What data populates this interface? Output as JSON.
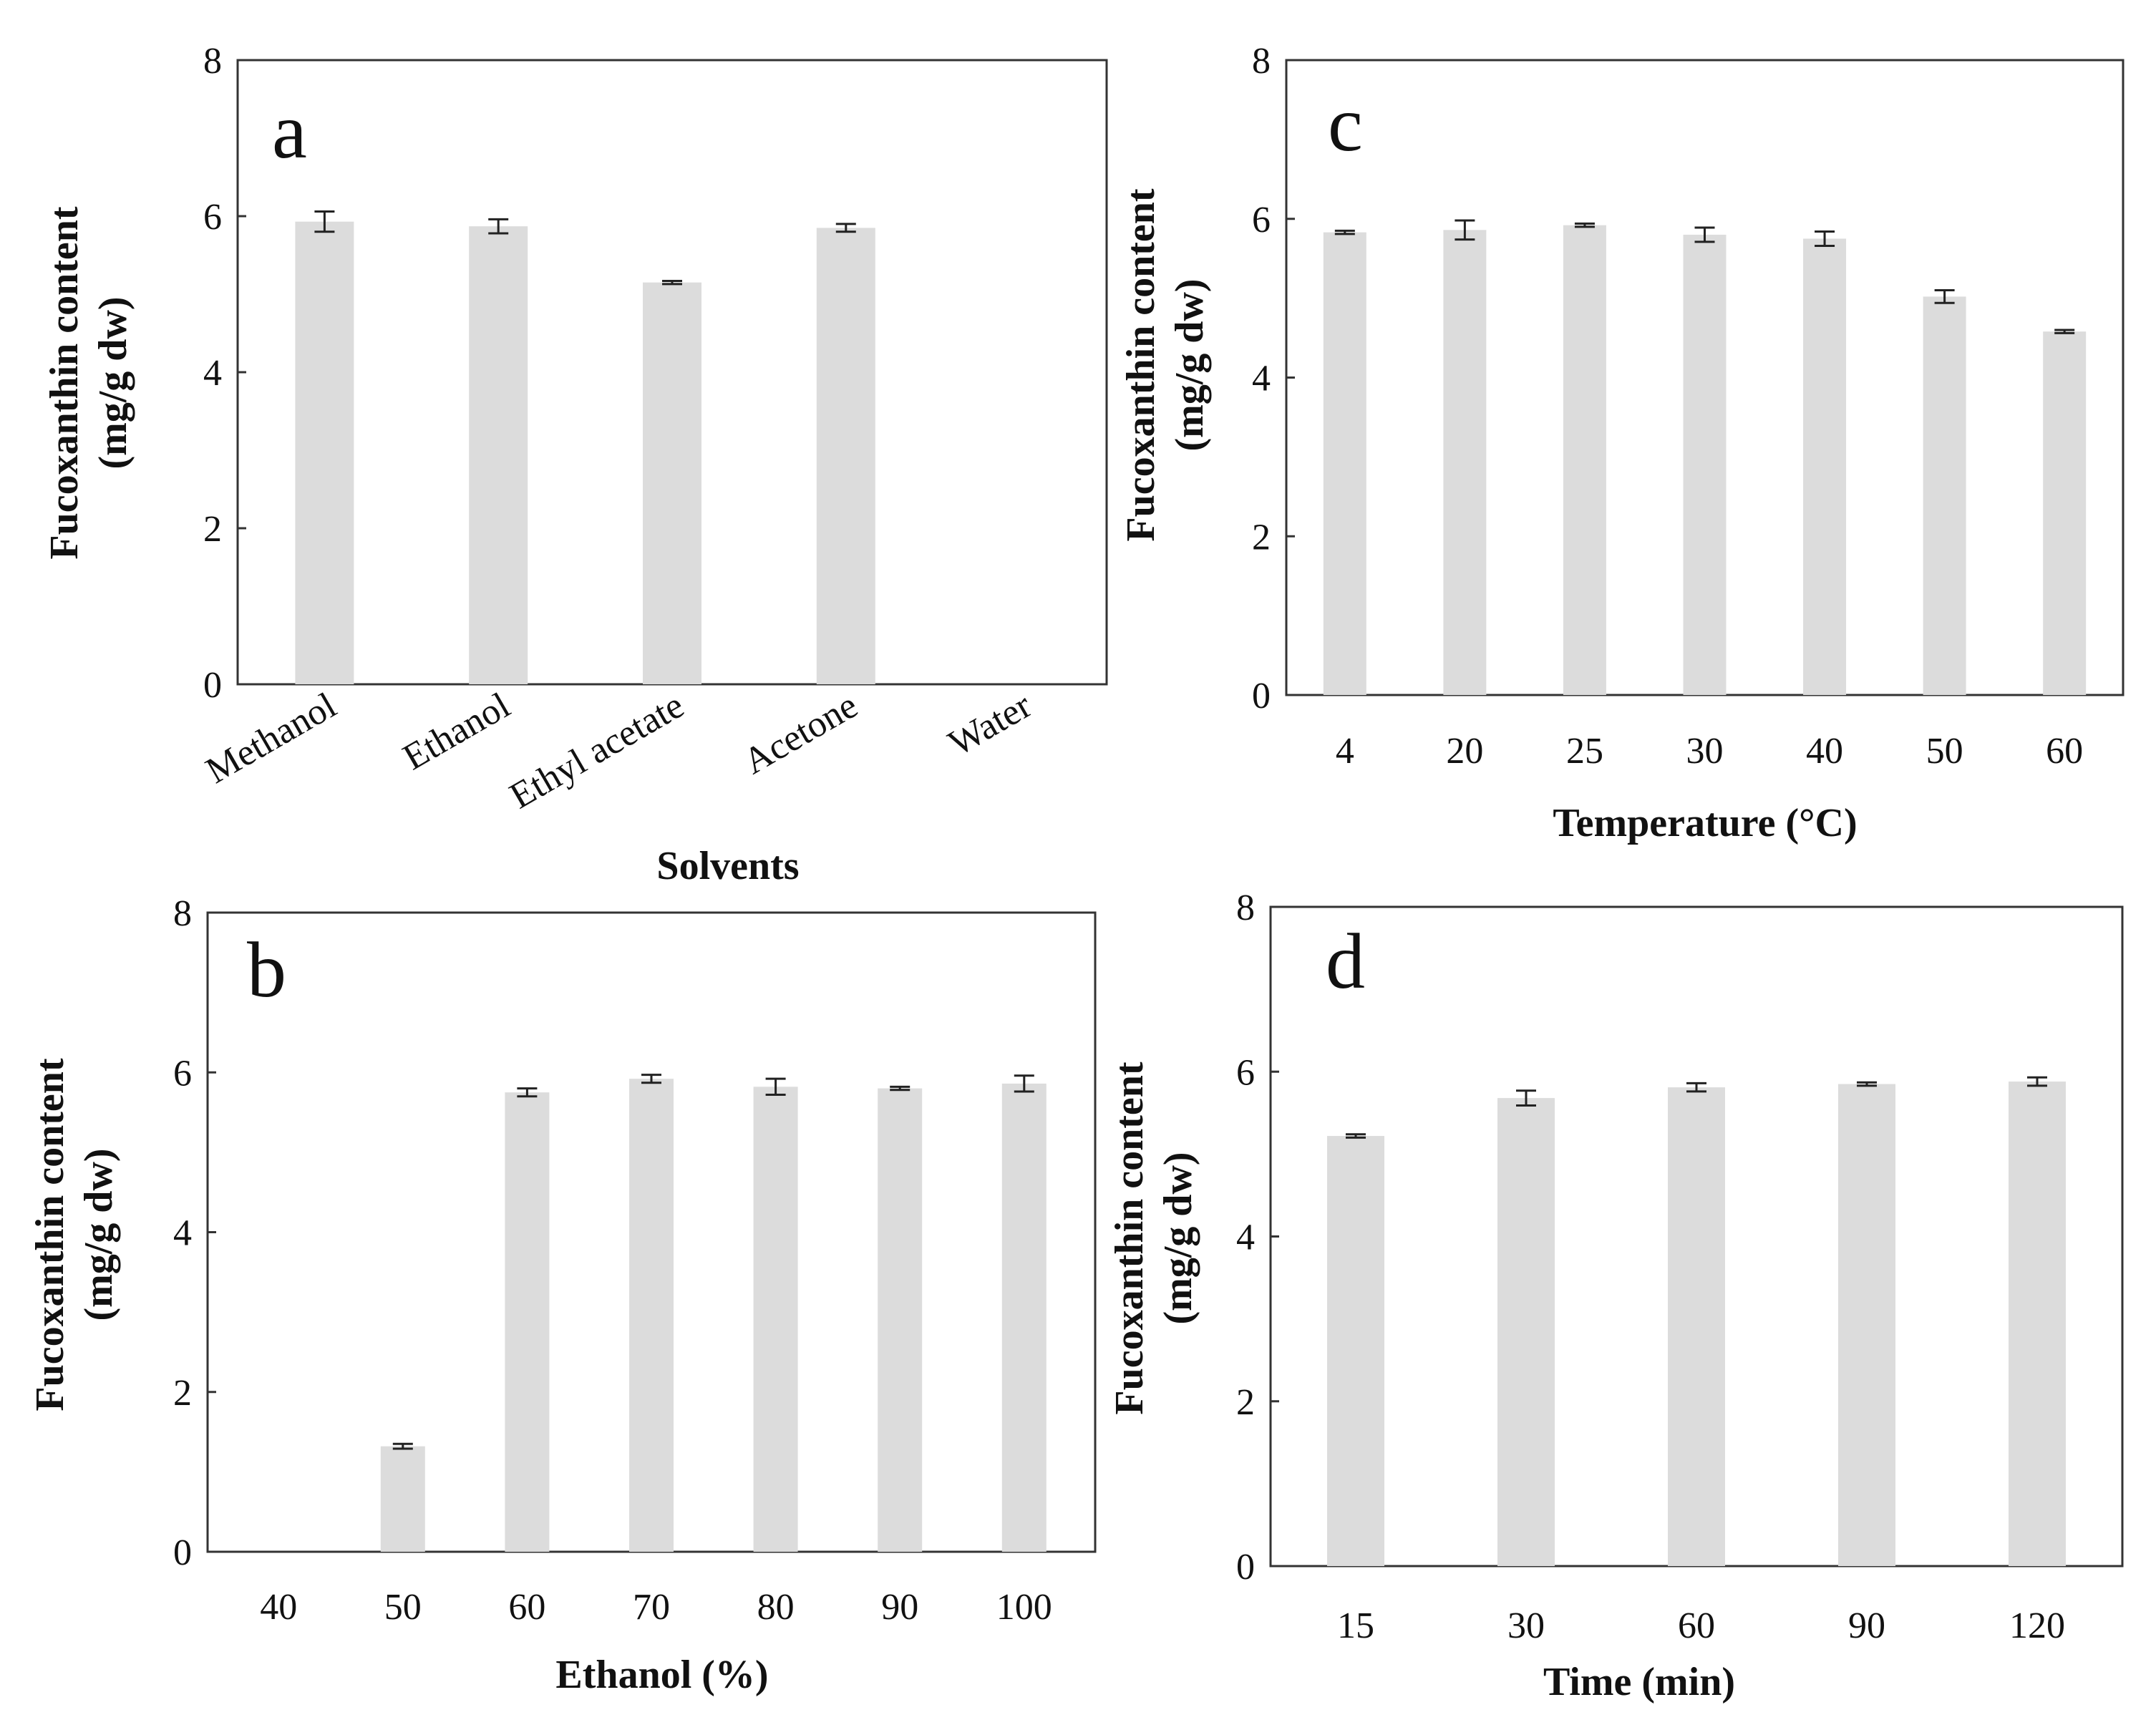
{
  "chart_data": [
    {
      "type": "bar",
      "panel_label": "a",
      "xlabel": "Solvents",
      "ylabel": [
        "Fucoxanthin content",
        "(mg/g dw)"
      ],
      "ylim": [
        0,
        8
      ],
      "yticks": [
        0,
        2,
        4,
        6,
        8
      ],
      "categories": [
        "Methanol",
        "Ethanol",
        "Ethyl acetate",
        "Acetone",
        "Water"
      ],
      "values": [
        5.93,
        5.87,
        5.15,
        5.85,
        0
      ],
      "errors": [
        0.13,
        0.09,
        0.02,
        0.05,
        0
      ],
      "bar_color": "#dcdcdc",
      "rotated_tick_labels": true,
      "grid": false,
      "legend": "none"
    },
    {
      "type": "bar",
      "panel_label": "b",
      "xlabel": "Ethanol (%)",
      "ylabel": [
        "Fucoxanthin content",
        "(mg/g dw)"
      ],
      "ylim": [
        0,
        8
      ],
      "yticks": [
        0,
        2,
        4,
        6,
        8
      ],
      "categories": [
        "40",
        "50",
        "60",
        "70",
        "80",
        "90",
        "100"
      ],
      "values": [
        0,
        1.32,
        5.75,
        5.92,
        5.82,
        5.8,
        5.86
      ],
      "errors": [
        0,
        0.03,
        0.05,
        0.05,
        0.1,
        0.02,
        0.1
      ],
      "bar_color": "#dcdcdc",
      "rotated_tick_labels": false,
      "grid": false,
      "legend": "none"
    },
    {
      "type": "bar",
      "panel_label": "c",
      "xlabel": "Temperature (°C)",
      "ylabel": [
        "Fucoxanthin content",
        "(mg/g dw)"
      ],
      "ylim": [
        0,
        8
      ],
      "yticks": [
        0,
        2,
        4,
        6,
        8
      ],
      "categories": [
        "4",
        "20",
        "25",
        "30",
        "40",
        "50",
        "60"
      ],
      "values": [
        5.83,
        5.86,
        5.92,
        5.8,
        5.75,
        5.02,
        4.58
      ],
      "errors": [
        0.02,
        0.12,
        0.02,
        0.09,
        0.09,
        0.08,
        0.02
      ],
      "bar_color": "#dcdcdc",
      "rotated_tick_labels": false,
      "grid": false,
      "legend": "none"
    },
    {
      "type": "bar",
      "panel_label": "d",
      "xlabel": "Time (min)",
      "ylabel": [
        "Fucoxanthin content",
        "(mg/g dw)"
      ],
      "ylim": [
        0,
        8
      ],
      "yticks": [
        0,
        2,
        4,
        6,
        8
      ],
      "categories": [
        "15",
        "30",
        "60",
        "90",
        "120"
      ],
      "values": [
        5.22,
        5.68,
        5.81,
        5.85,
        5.88
      ],
      "errors": [
        0.02,
        0.09,
        0.05,
        0.02,
        0.05
      ],
      "bar_color": "#dcdcdc",
      "rotated_tick_labels": false,
      "grid": false,
      "legend": "none"
    }
  ]
}
